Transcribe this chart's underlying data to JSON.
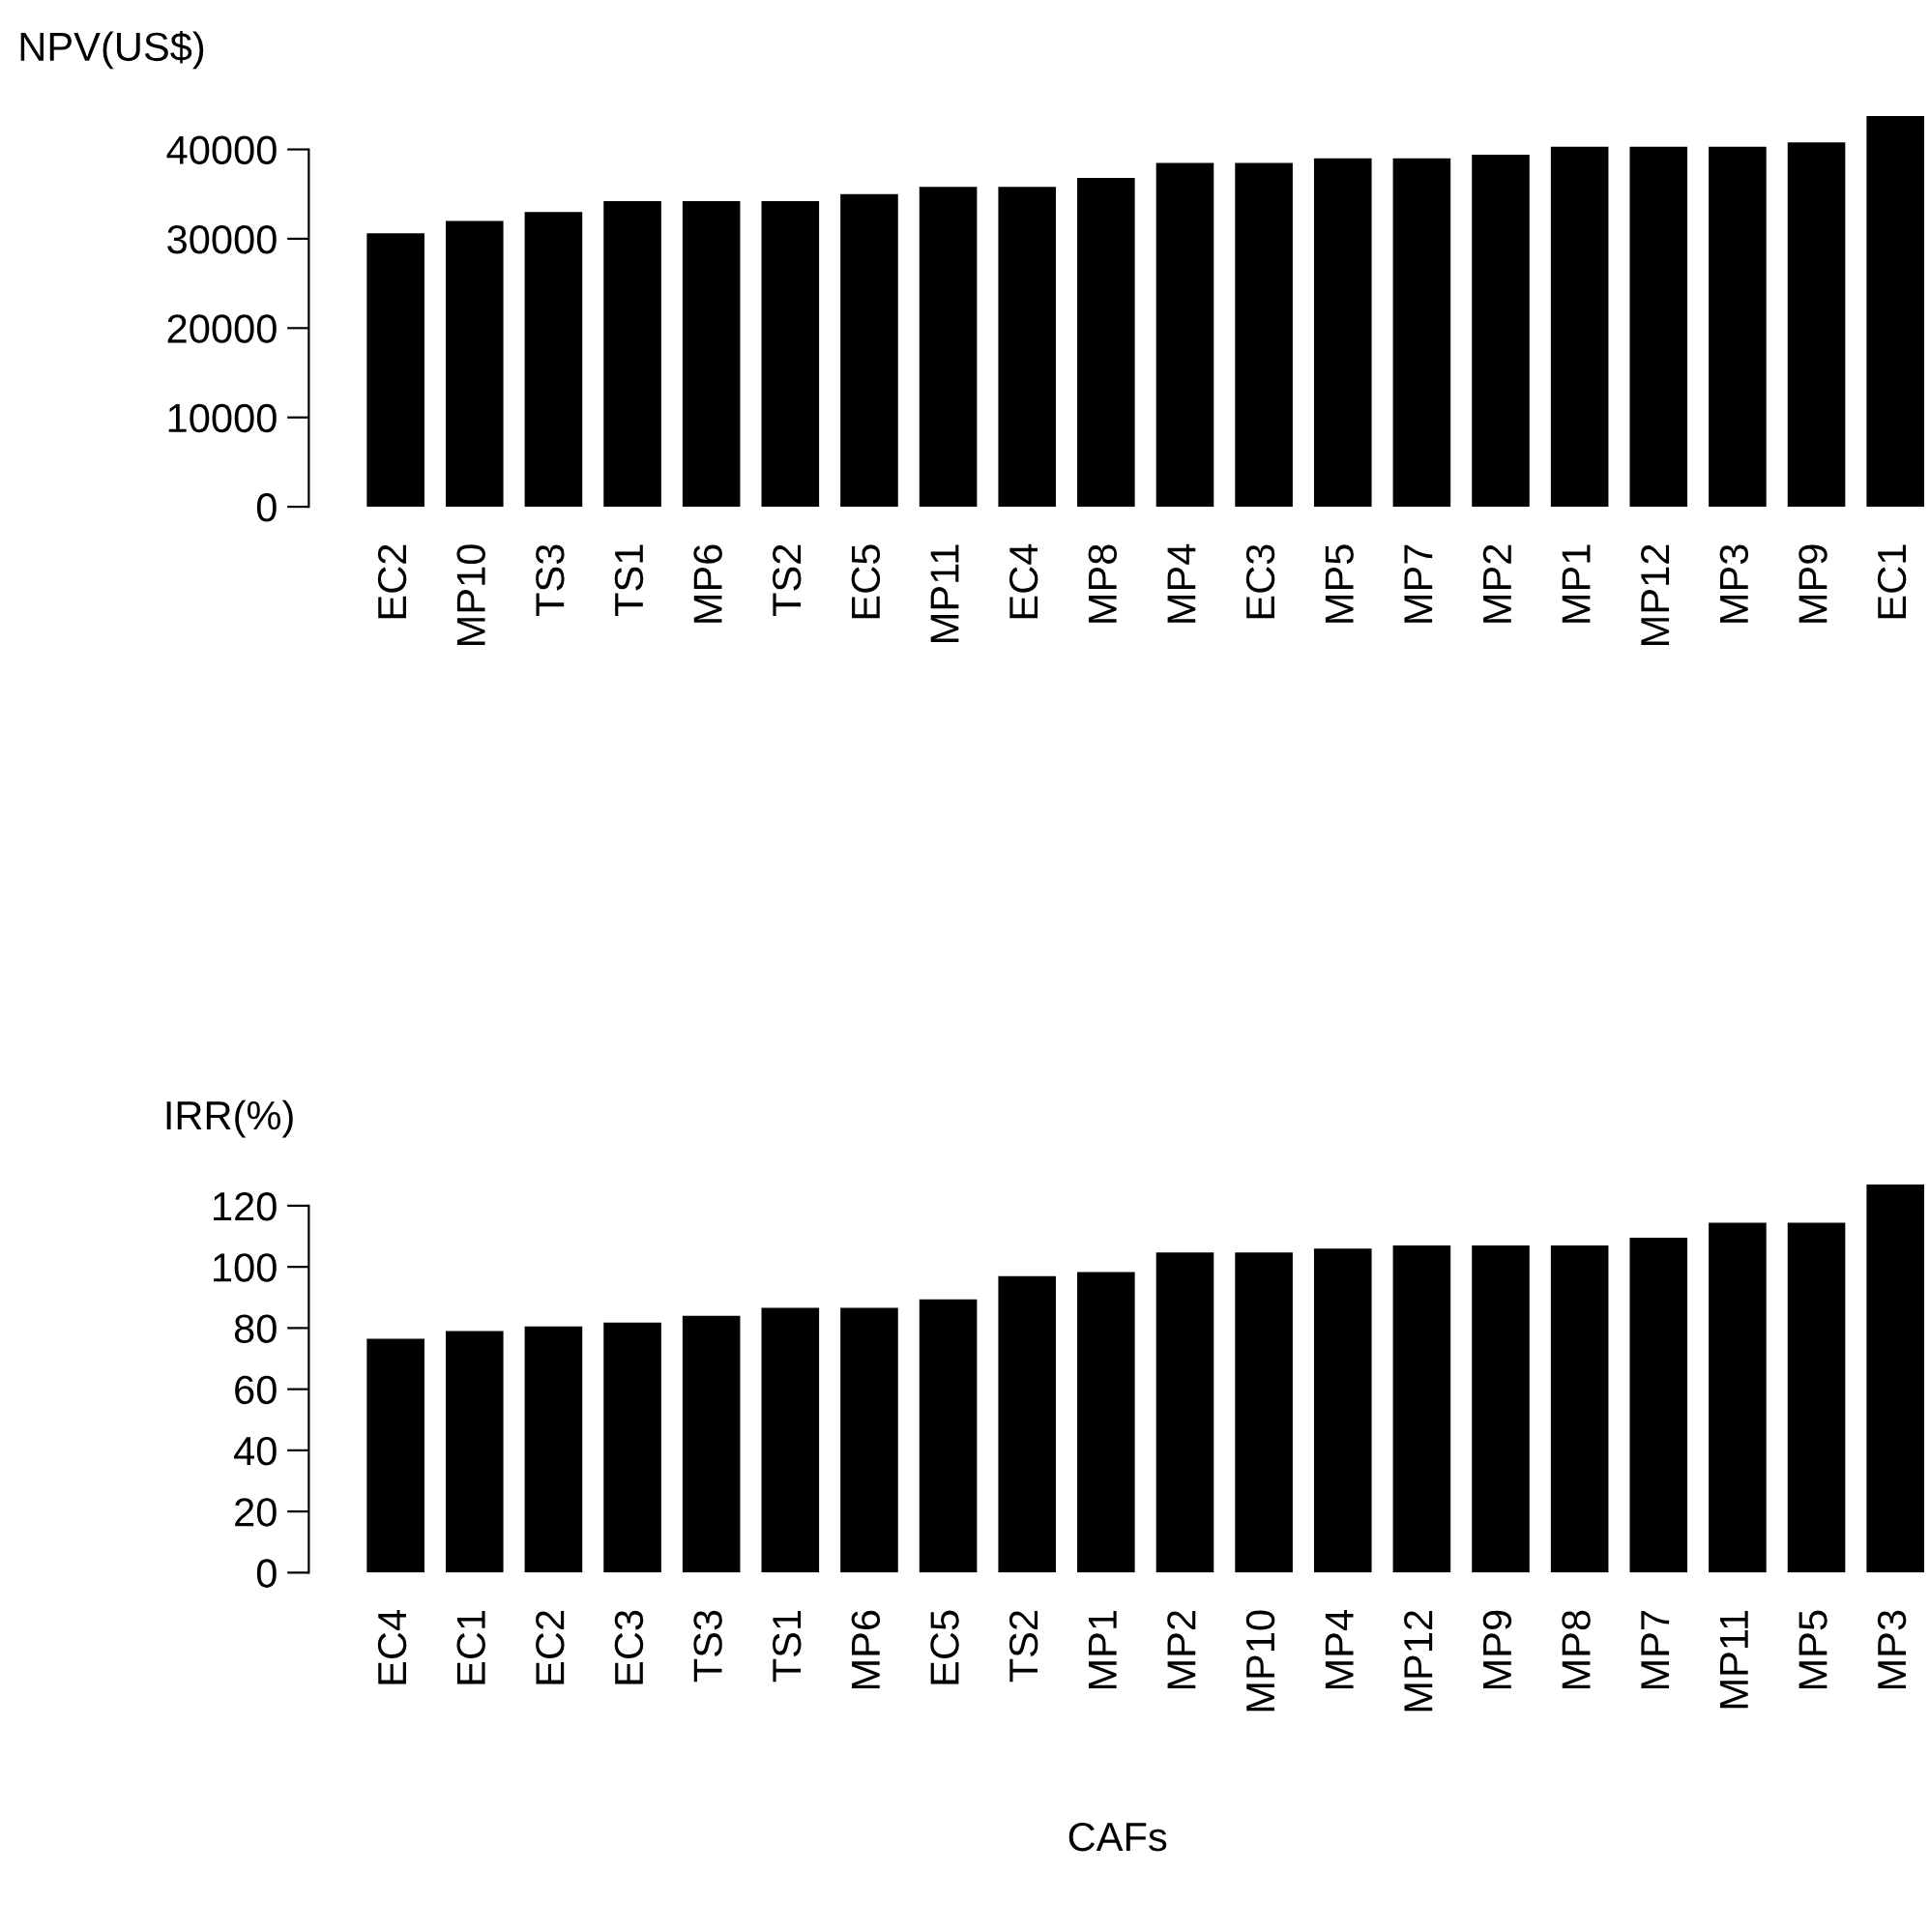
{
  "chart_data": [
    {
      "type": "bar",
      "ylabel": "NPV(US$)",
      "categories": [
        "EC2",
        "MP10",
        "TS3",
        "TS1",
        "MP6",
        "TS2",
        "EC5",
        "MP11",
        "EC4",
        "MP8",
        "MP4",
        "EC3",
        "MP5",
        "MP7",
        "MP2",
        "MP1",
        "MP12",
        "MP3",
        "MP9",
        "EC1"
      ],
      "values": [
        30600,
        32000,
        33000,
        34200,
        34200,
        34200,
        35000,
        35800,
        35800,
        36800,
        38500,
        38500,
        39000,
        39000,
        39400,
        40300,
        40300,
        40300,
        40800,
        43750
      ],
      "color": "#000000",
      "ylim": [
        0,
        43750
      ],
      "yticks": [
        0,
        10000,
        20000,
        30000,
        40000
      ],
      "grid": false
    },
    {
      "type": "bar",
      "ylabel": "IRR(%)",
      "xlabel": "CAFs",
      "categories": [
        "EC4",
        "EC1",
        "EC2",
        "EC3",
        "TS3",
        "TS1",
        "MP6",
        "EC5",
        "TS2",
        "MP1",
        "MP2",
        "MP10",
        "MP4",
        "MP12",
        "MP9",
        "MP8",
        "MP7",
        "MP11",
        "MP5",
        "MP3"
      ],
      "values": [
        76.5,
        79,
        80.5,
        81.8,
        84,
        86.6,
        86.6,
        89.4,
        97,
        98.3,
        104.7,
        104.7,
        106,
        107,
        107,
        107,
        109.5,
        114.4,
        114.4,
        127
      ],
      "color": "#000000",
      "ylim": [
        0,
        127
      ],
      "yticks": [
        0,
        20,
        40,
        60,
        80,
        100,
        120
      ],
      "grid": false
    }
  ]
}
